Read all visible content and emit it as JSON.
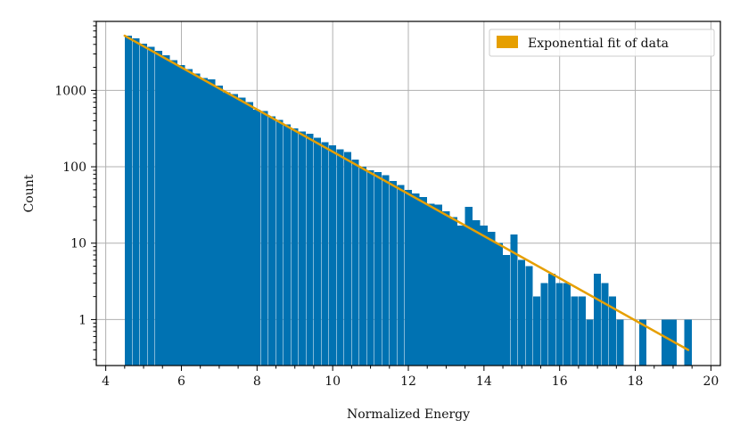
{
  "chart_data": {
    "type": "bar",
    "xlabel": "Normalized Energy",
    "ylabel": "Count",
    "xlim": [
      3.75,
      20.25
    ],
    "ylim": [
      0.25,
      8000
    ],
    "y_scale": "log",
    "grid": true,
    "legend_position": "top-right",
    "x_ticks": [
      4,
      6,
      8,
      10,
      12,
      14,
      16,
      18,
      20
    ],
    "y_ticks": [
      1,
      10,
      100,
      1000
    ],
    "y_tick_labels": [
      "1",
      "10",
      "100",
      "1000"
    ],
    "bar_color": "#0072b2",
    "fit_color": "#e69f00",
    "bin_width": 0.2,
    "histogram": {
      "bin_starts": [
        4.5,
        4.7,
        4.9,
        5.1,
        5.3,
        5.5,
        5.7,
        5.9,
        6.1,
        6.3,
        6.5,
        6.7,
        6.9,
        7.1,
        7.3,
        7.5,
        7.7,
        7.9,
        8.1,
        8.3,
        8.5,
        8.7,
        8.9,
        9.1,
        9.3,
        9.5,
        9.7,
        9.9,
        10.1,
        10.3,
        10.5,
        10.7,
        10.9,
        11.1,
        11.3,
        11.5,
        11.7,
        11.9,
        12.1,
        12.3,
        12.5,
        12.7,
        12.9,
        13.1,
        13.3,
        13.5,
        13.7,
        13.9,
        14.1,
        14.3,
        14.5,
        14.7,
        14.9,
        15.1,
        15.3,
        15.5,
        15.7,
        15.9,
        16.1,
        16.3,
        16.5,
        16.7,
        16.9,
        17.1,
        17.3,
        17.5,
        18.1,
        18.7,
        18.9,
        19.3
      ],
      "counts": [
        5200,
        4800,
        4100,
        3700,
        3300,
        2900,
        2500,
        2150,
        1900,
        1650,
        1450,
        1400,
        1150,
        950,
        900,
        800,
        700,
        560,
        540,
        460,
        410,
        360,
        320,
        290,
        270,
        240,
        210,
        190,
        170,
        155,
        125,
        100,
        90,
        85,
        78,
        65,
        58,
        50,
        45,
        40,
        33,
        32,
        26,
        22,
        17,
        30,
        20,
        17,
        14,
        10,
        7,
        13,
        6,
        5,
        2,
        3,
        4,
        3,
        3,
        2,
        2,
        1,
        4,
        3,
        2,
        1,
        1,
        1,
        1,
        1
      ]
    },
    "series": [
      {
        "name": "Exponential fit of data",
        "type": "line",
        "x": [
          4.5,
          19.4
        ],
        "y": [
          5200,
          0.4
        ]
      }
    ]
  }
}
